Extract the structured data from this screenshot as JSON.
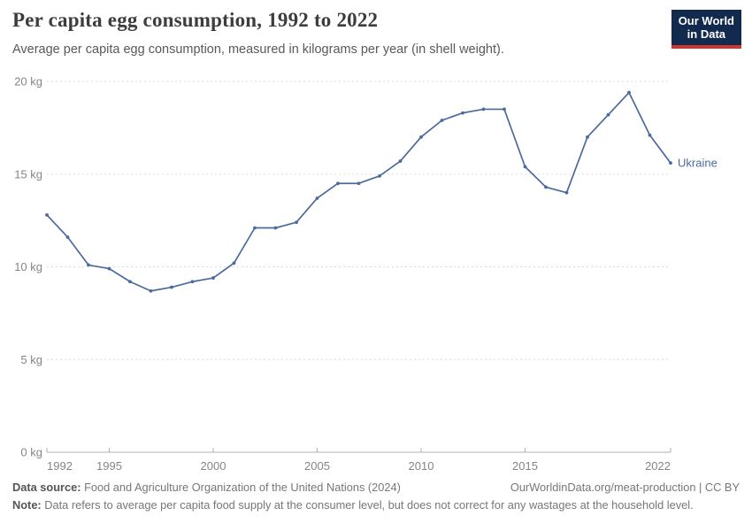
{
  "header": {
    "title": "Per capita egg consumption, 1992 to 2022",
    "subtitle": "Average per capita egg consumption, measured in kilograms per year (in shell weight).",
    "logo": {
      "line1": "Our World",
      "line2": "in Data",
      "bg_color": "#122a4e",
      "accent_color": "#d2352b"
    }
  },
  "chart_data": {
    "type": "line",
    "title": "Per capita egg consumption, 1992 to 2022",
    "xlabel": "",
    "ylabel": "kilograms per year",
    "xlim": [
      1992,
      2022
    ],
    "ylim": [
      0,
      20
    ],
    "grid": "horizontal-dashed",
    "legend_position": "line-end-label",
    "x": [
      1992,
      1993,
      1994,
      1995,
      1996,
      1997,
      1998,
      1999,
      2000,
      2001,
      2002,
      2003,
      2004,
      2005,
      2006,
      2007,
      2008,
      2009,
      2010,
      2011,
      2012,
      2013,
      2014,
      2015,
      2016,
      2017,
      2018,
      2019,
      2020,
      2021,
      2022
    ],
    "series": [
      {
        "name": "Ukraine",
        "color": "#4c6a9c",
        "values": [
          12.8,
          11.6,
          10.1,
          9.9,
          9.2,
          8.7,
          8.9,
          9.2,
          9.4,
          10.2,
          12.1,
          12.1,
          12.4,
          13.7,
          14.5,
          14.5,
          14.9,
          15.7,
          17.0,
          17.9,
          18.3,
          18.5,
          18.5,
          15.4,
          14.3,
          14.0,
          17.0,
          18.2,
          19.4,
          17.1,
          15.6
        ]
      }
    ],
    "yticks": {
      "values": [
        0,
        5,
        10,
        15,
        20
      ],
      "labels": [
        "0 kg",
        "5 kg",
        "10 kg",
        "15 kg",
        "20 kg"
      ]
    },
    "xticks": {
      "values": [
        1992,
        1995,
        2000,
        2005,
        2010,
        2015,
        2022
      ],
      "labels": [
        "1992",
        "1995",
        "2000",
        "2005",
        "2010",
        "2015",
        "2022"
      ]
    },
    "colors": {
      "grid": "#dddddd",
      "axis": "#b0b0b0",
      "tick_label": "#858585"
    }
  },
  "footer": {
    "source_label": "Data source:",
    "source_text": " Food and Agriculture Organization of the United Nations (2024)",
    "link_text": "OurWorldinData.org/meat-production | CC BY",
    "note_label": "Note:",
    "note_text": " Data refers to average per capita food supply at the consumer level, but does not correct for any wastages at the household level."
  }
}
